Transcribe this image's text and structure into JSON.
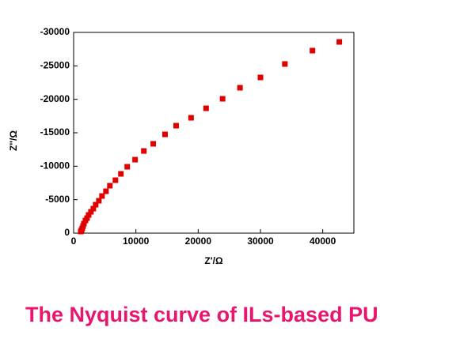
{
  "chart_data": {
    "type": "scatter",
    "title": "The Nyquist curve of ILs-based PU",
    "x_label": "Z'/Ω",
    "y_label": "Z''/Ω",
    "color": "#e00000",
    "xlim": [
      0,
      45000
    ],
    "xticks": [
      0,
      10000,
      20000,
      30000,
      40000
    ],
    "ylim": [
      0,
      -30000
    ],
    "yticks": [
      0,
      -5000,
      -10000,
      -15000,
      -20000,
      -25000,
      -30000
    ],
    "series": [
      {
        "name": null,
        "color": "#e00000",
        "x": [
          42660,
          38350,
          33920,
          30000,
          26710,
          23920,
          21270,
          18860,
          16460,
          14680,
          12780,
          11270,
          9870,
          8610,
          7590,
          6710,
          5820,
          5190,
          4560,
          4050,
          3540,
          3160,
          2780,
          2410,
          2150,
          1900,
          1650,
          1520,
          1390,
          1270,
          1140
        ],
        "values": [
          -28580,
          -27280,
          -25280,
          -23270,
          -21730,
          -20080,
          -18660,
          -17240,
          -16060,
          -14760,
          -13350,
          -12280,
          -10980,
          -9920,
          -8860,
          -7910,
          -7090,
          -6260,
          -5550,
          -4840,
          -4250,
          -3660,
          -3190,
          -2720,
          -2240,
          -1890,
          -1420,
          -1060,
          -710,
          -470,
          -240
        ]
      }
    ]
  }
}
